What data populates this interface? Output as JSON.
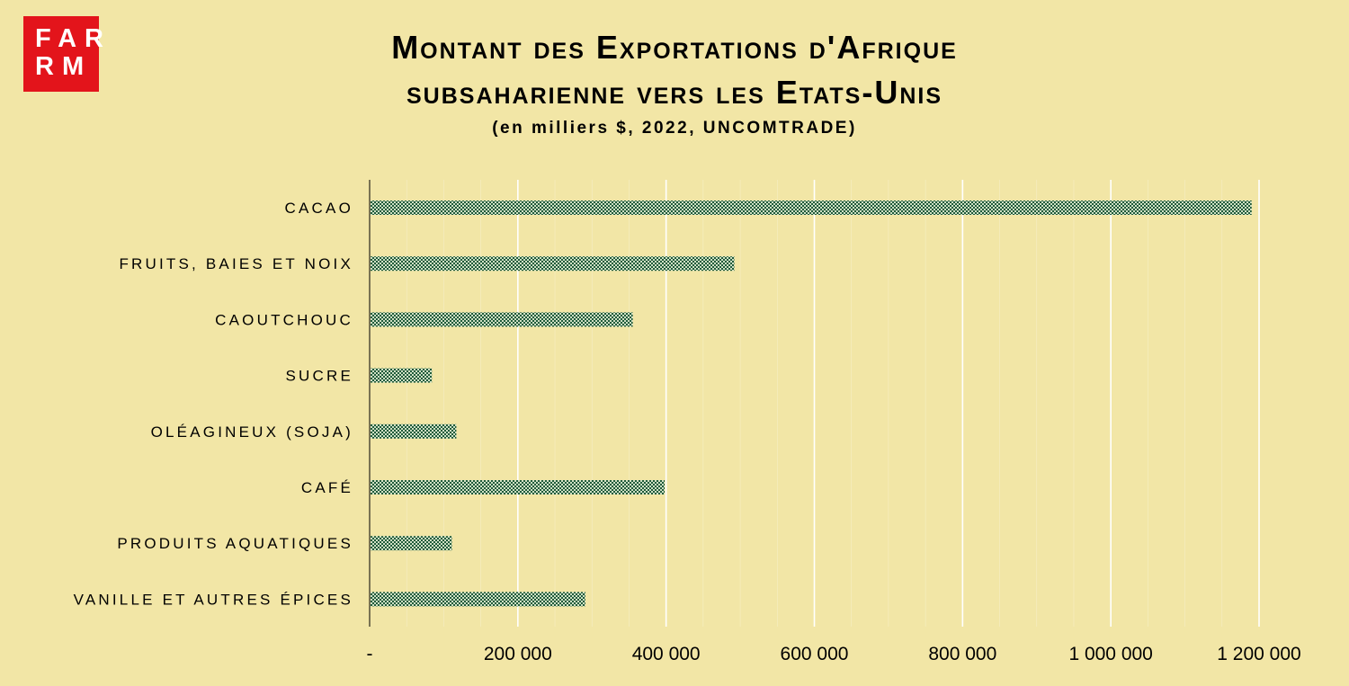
{
  "logo": {
    "line1": "FAR",
    "line2": "RM"
  },
  "header": {
    "title_line1": "Montant des Exportations d'Afrique",
    "title_line2": "subsaharienne vers les Etats-Unis",
    "subtitle": "(en milliers $, 2022, UNCOMTRADE)"
  },
  "colors": {
    "background": "#f2e6a6",
    "bar_dark": "#1f5a3a",
    "bar_light": "#cfe0c4",
    "gridline": "#ffffff",
    "logo": "#e3141b"
  },
  "chart_data": {
    "type": "bar",
    "orientation": "horizontal",
    "categories": [
      "CACAO",
      "FRUITS, BAIES ET NOIX",
      "CAOUTCHOUC",
      "SUCRE",
      "OLÉAGINEUX (SOJA)",
      "CAFÉ",
      "PRODUITS AQUATIQUES",
      "VANILLE ET AUTRES ÉPICES"
    ],
    "values": [
      1190000,
      492000,
      355000,
      84000,
      117000,
      398000,
      111000,
      291000
    ],
    "xlim": [
      0,
      1200000
    ],
    "xticks": [
      0,
      200000,
      400000,
      600000,
      800000,
      1000000,
      1200000
    ],
    "xtick_labels": [
      "-",
      "200 000",
      "400 000",
      "600 000",
      "800 000",
      "1 000 000",
      "1 200 000"
    ],
    "grid": true,
    "legend": "none"
  }
}
